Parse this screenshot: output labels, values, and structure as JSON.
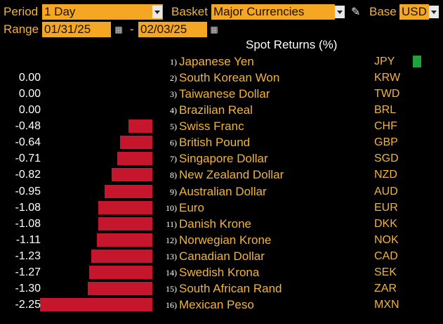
{
  "toolbar": {
    "period_label": "Period",
    "period_value": "1 Day",
    "basket_label": "Basket",
    "basket_value": "Major Currencies",
    "base_label": "Base",
    "base_value": "USD",
    "range_label": "Range",
    "range_start": "01/31/25",
    "range_separator": "-",
    "range_end": "02/03/25"
  },
  "chart": {
    "title": "Spot Returns (%)",
    "positive_color": "#1ca33a",
    "negative_color": "#c5162e"
  },
  "chart_data": {
    "type": "bar",
    "title": "Spot Returns (%)",
    "categories": [
      "Japanese Yen",
      "South Korean Won",
      "Taiwanese Dollar",
      "Brazilian Real",
      "Swiss Franc",
      "British Pound",
      "Singapore Dollar",
      "New Zealand Dollar",
      "Australian Dollar",
      "Euro",
      "Danish Krone",
      "Norwegian Krone",
      "Canadian Dollar",
      "Swedish Krona",
      "South African Rand",
      "Mexican Peso"
    ],
    "rows": [
      {
        "rank": "1)",
        "name": "Japanese Yen",
        "code": "JPY",
        "value": null,
        "label": ""
      },
      {
        "rank": "2)",
        "name": "South Korean Won",
        "code": "KRW",
        "value": 0.0,
        "label": "0.00"
      },
      {
        "rank": "3)",
        "name": "Taiwanese Dollar",
        "code": "TWD",
        "value": 0.0,
        "label": "0.00"
      },
      {
        "rank": "4)",
        "name": "Brazilian Real",
        "code": "BRL",
        "value": 0.0,
        "label": "0.00"
      },
      {
        "rank": "5)",
        "name": "Swiss Franc",
        "code": "CHF",
        "value": -0.48,
        "label": "-0.48"
      },
      {
        "rank": "6)",
        "name": "British Pound",
        "code": "GBP",
        "value": -0.64,
        "label": "-0.64"
      },
      {
        "rank": "7)",
        "name": "Singapore Dollar",
        "code": "SGD",
        "value": -0.71,
        "label": "-0.71"
      },
      {
        "rank": "8)",
        "name": "New Zealand Dollar",
        "code": "NZD",
        "value": -0.82,
        "label": "-0.82"
      },
      {
        "rank": "9)",
        "name": "Australian Dollar",
        "code": "AUD",
        "value": -0.95,
        "label": "-0.95"
      },
      {
        "rank": "10)",
        "name": "Euro",
        "code": "EUR",
        "value": -1.08,
        "label": "-1.08"
      },
      {
        "rank": "11)",
        "name": "Danish Krone",
        "code": "DKK",
        "value": -1.08,
        "label": "-1.08"
      },
      {
        "rank": "12)",
        "name": "Norwegian Krone",
        "code": "NOK",
        "value": -1.11,
        "label": "-1.11"
      },
      {
        "rank": "13)",
        "name": "Canadian Dollar",
        "code": "CAD",
        "value": -1.23,
        "label": "-1.23"
      },
      {
        "rank": "14)",
        "name": "Swedish Krona",
        "code": "SEK",
        "value": -1.27,
        "label": "-1.27"
      },
      {
        "rank": "15)",
        "name": "South African Rand",
        "code": "ZAR",
        "value": -1.3,
        "label": "-1.30"
      },
      {
        "rank": "16)",
        "name": "Mexican Peso",
        "code": "MXN",
        "value": -2.25,
        "label": "-2.25"
      }
    ],
    "xlim": [
      -2.25,
      0
    ],
    "grid": false
  }
}
